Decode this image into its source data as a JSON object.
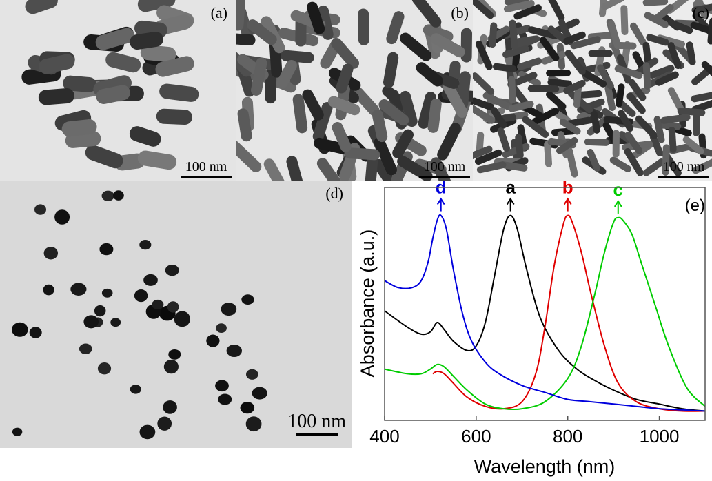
{
  "panels": {
    "a": {
      "label": "(a)",
      "scale": "100 nm"
    },
    "b": {
      "label": "(b)",
      "scale": "100 nm"
    },
    "c": {
      "label": "(c)",
      "scale": "100 nm"
    },
    "d": {
      "label": "(d)",
      "scale": "100 nm"
    }
  },
  "chart_data": {
    "type": "line",
    "panel_label": "(e)",
    "xlabel": "Wavelength (nm)",
    "ylabel": "Absorbance (a.u.)",
    "xlim": [
      400,
      1100
    ],
    "ylim": [
      0,
      1
    ],
    "xticks": [
      "400",
      "600",
      "800",
      "1000"
    ],
    "xtick_values": [
      400,
      600,
      800,
      1000
    ],
    "y_tick_labels": false,
    "grid": false,
    "legend": "none",
    "series": [
      {
        "name": "a",
        "color": "#000000",
        "peak_wavelength": 675,
        "x": [
          400,
          450,
          480,
          500,
          515,
          530,
          550,
          580,
          600,
          620,
          640,
          660,
          675,
          690,
          710,
          740,
          780,
          820,
          860,
          900,
          950,
          1000,
          1050,
          1100
        ],
        "y": [
          0.47,
          0.4,
          0.37,
          0.38,
          0.42,
          0.39,
          0.34,
          0.3,
          0.32,
          0.42,
          0.62,
          0.82,
          0.88,
          0.82,
          0.65,
          0.44,
          0.3,
          0.22,
          0.17,
          0.13,
          0.09,
          0.07,
          0.05,
          0.04
        ]
      },
      {
        "name": "b",
        "color": "#e00000",
        "peak_wavelength": 800,
        "x": [
          505,
          515,
          530,
          550,
          580,
          620,
          660,
          700,
          730,
          750,
          770,
          790,
          800,
          810,
          830,
          850,
          880,
          910,
          950,
          1000,
          1050,
          1100
        ],
        "y": [
          0.2,
          0.21,
          0.2,
          0.16,
          0.1,
          0.06,
          0.05,
          0.08,
          0.2,
          0.4,
          0.66,
          0.84,
          0.88,
          0.85,
          0.72,
          0.55,
          0.32,
          0.16,
          0.08,
          0.05,
          0.04,
          0.04
        ]
      },
      {
        "name": "c",
        "color": "#00cc00",
        "peak_wavelength": 910,
        "x": [
          400,
          450,
          480,
          500,
          515,
          530,
          550,
          580,
          620,
          660,
          700,
          750,
          800,
          830,
          860,
          880,
          900,
          910,
          920,
          940,
          960,
          990,
          1020,
          1060,
          1100
        ],
        "y": [
          0.22,
          0.2,
          0.2,
          0.22,
          0.24,
          0.23,
          0.19,
          0.13,
          0.07,
          0.05,
          0.05,
          0.08,
          0.18,
          0.32,
          0.55,
          0.72,
          0.85,
          0.87,
          0.86,
          0.8,
          0.68,
          0.5,
          0.32,
          0.14,
          0.06
        ]
      },
      {
        "name": "d",
        "color": "#0000dd",
        "peak_wavelength": 523,
        "x": [
          400,
          430,
          460,
          480,
          495,
          505,
          515,
          523,
          535,
          550,
          570,
          590,
          620,
          650,
          700,
          750,
          800,
          850,
          900,
          950,
          1000,
          1050,
          1100
        ],
        "y": [
          0.6,
          0.57,
          0.57,
          0.6,
          0.68,
          0.78,
          0.86,
          0.88,
          0.82,
          0.65,
          0.46,
          0.34,
          0.25,
          0.2,
          0.15,
          0.12,
          0.09,
          0.08,
          0.07,
          0.06,
          0.05,
          0.045,
          0.04
        ]
      }
    ]
  }
}
